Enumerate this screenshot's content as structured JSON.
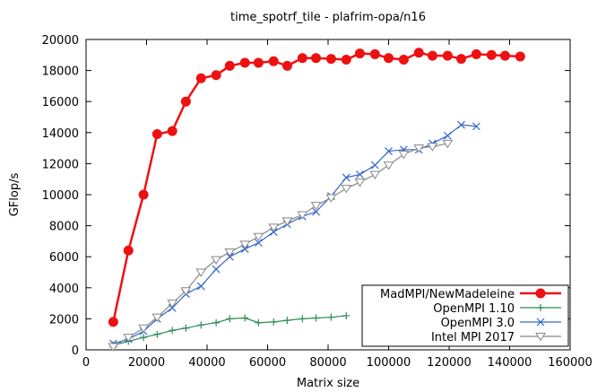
{
  "chart_data": {
    "type": "line",
    "title": "time_spotrf_tile - plafrim-opa/n16",
    "xlabel": "Matrix size",
    "ylabel": "GFlop/s",
    "xlim": [
      0,
      160000
    ],
    "ylim": [
      0,
      20000
    ],
    "xticks": [
      0,
      20000,
      40000,
      60000,
      80000,
      100000,
      120000,
      140000,
      160000
    ],
    "yticks": [
      0,
      2000,
      4000,
      6000,
      8000,
      10000,
      12000,
      14000,
      16000,
      18000,
      20000
    ],
    "grid": false,
    "legend_position": "bottom-right",
    "series": [
      {
        "name": "MadMPI/NewMadeleine",
        "color": "#ee1111",
        "marker": "filled-circle",
        "x": [
          9000,
          14000,
          19000,
          23500,
          28500,
          33000,
          38000,
          43000,
          47500,
          52500,
          57000,
          62000,
          66500,
          71500,
          76000,
          81000,
          86000,
          90500,
          95500,
          100000,
          105000,
          110000,
          114500,
          119500,
          124000,
          129000,
          134000,
          138500,
          143500
        ],
        "y": [
          1800,
          6400,
          10000,
          13900,
          14100,
          16000,
          17500,
          17700,
          18300,
          18500,
          18500,
          18600,
          18300,
          18800,
          18800,
          18750,
          18700,
          19100,
          19050,
          18800,
          18700,
          19150,
          18950,
          18950,
          18750,
          19050,
          19000,
          18950,
          18900
        ]
      },
      {
        "name": "OpenMPI 1.10",
        "color": "#2e8b57",
        "marker": "plus",
        "x": [
          9000,
          14000,
          19000,
          23500,
          28500,
          33000,
          38000,
          43000,
          47500,
          52500,
          57000,
          62000,
          66500,
          71500,
          76000,
          81000,
          86000
        ],
        "y": [
          300,
          550,
          800,
          1000,
          1250,
          1400,
          1600,
          1750,
          2000,
          2050,
          1750,
          1800,
          1900,
          2000,
          2050,
          2100,
          2200
        ]
      },
      {
        "name": "OpenMPI 3.0",
        "color": "#3366cc",
        "marker": "x",
        "x": [
          9000,
          14000,
          19000,
          23500,
          28500,
          33000,
          38000,
          43000,
          47500,
          52500,
          57000,
          62000,
          66500,
          71500,
          76000,
          81000,
          86000,
          90500,
          95500,
          100000,
          105000,
          110000,
          114500,
          119500,
          124000,
          129000
        ],
        "y": [
          400,
          700,
          1200,
          2000,
          2700,
          3600,
          4100,
          5200,
          6000,
          6500,
          6900,
          7600,
          8100,
          8600,
          8900,
          9900,
          11100,
          11300,
          11900,
          12800,
          12900,
          12900,
          13300,
          13800,
          14500,
          14400
        ]
      },
      {
        "name": "Intel MPI 2017",
        "color": "#888888",
        "marker": "triangle-down",
        "x": [
          9000,
          14000,
          19000,
          23500,
          28500,
          33000,
          38000,
          43000,
          47500,
          52500,
          57000,
          62000,
          66500,
          71500,
          76000,
          81000,
          86000,
          90500,
          95500,
          100000,
          105000,
          110000,
          114500,
          119500
        ],
        "y": [
          200,
          800,
          1400,
          2100,
          3000,
          3800,
          5000,
          5800,
          6300,
          6800,
          7300,
          7900,
          8300,
          8700,
          9300,
          9800,
          10400,
          10800,
          11300,
          11900,
          12600,
          13000,
          13100,
          13300
        ]
      }
    ]
  }
}
